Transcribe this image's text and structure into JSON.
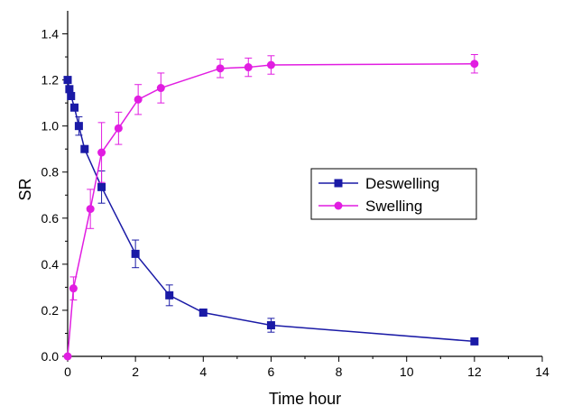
{
  "chart_data": {
    "type": "line",
    "xlabel": "Time hour",
    "ylabel": "SR",
    "xlim": [
      0,
      14
    ],
    "ylim": [
      0.0,
      1.5
    ],
    "x_ticks": [
      0,
      2,
      4,
      6,
      8,
      10,
      12,
      14
    ],
    "y_ticks": [
      0.0,
      0.2,
      0.4,
      0.6,
      0.8,
      1.0,
      1.2,
      1.4
    ],
    "y_tick_labels": [
      "0.0",
      "0.2",
      "0.4",
      "0.6",
      "0.8",
      "1.0",
      "1.2",
      "1.4"
    ],
    "grid": false,
    "legend_position": "center-right",
    "series": [
      {
        "name": "Deswelling",
        "color": "#1a1aa6",
        "marker": "square",
        "x": [
          0,
          0.05,
          0.1,
          0.2,
          0.33,
          0.5,
          1,
          2,
          3,
          4,
          6,
          12
        ],
        "y": [
          1.2,
          1.16,
          1.13,
          1.08,
          1.0,
          0.9,
          0.735,
          0.445,
          0.265,
          0.19,
          0.135,
          0.065
        ],
        "error": [
          0,
          0,
          0,
          0,
          0.04,
          0,
          0.07,
          0.06,
          0.045,
          0,
          0.03,
          0
        ]
      },
      {
        "name": "Swelling",
        "color": "#e11de1",
        "marker": "circle",
        "x": [
          0,
          0.17,
          0.67,
          1,
          1.5,
          2.08,
          2.75,
          4.5,
          5.33,
          6,
          12
        ],
        "y": [
          0.0,
          0.295,
          0.64,
          0.885,
          0.99,
          1.115,
          1.165,
          1.25,
          1.255,
          1.265,
          1.27
        ],
        "error": [
          0,
          0.05,
          0.085,
          0.13,
          0.07,
          0.065,
          0.065,
          0.04,
          0.04,
          0.04,
          0.04
        ]
      }
    ]
  }
}
